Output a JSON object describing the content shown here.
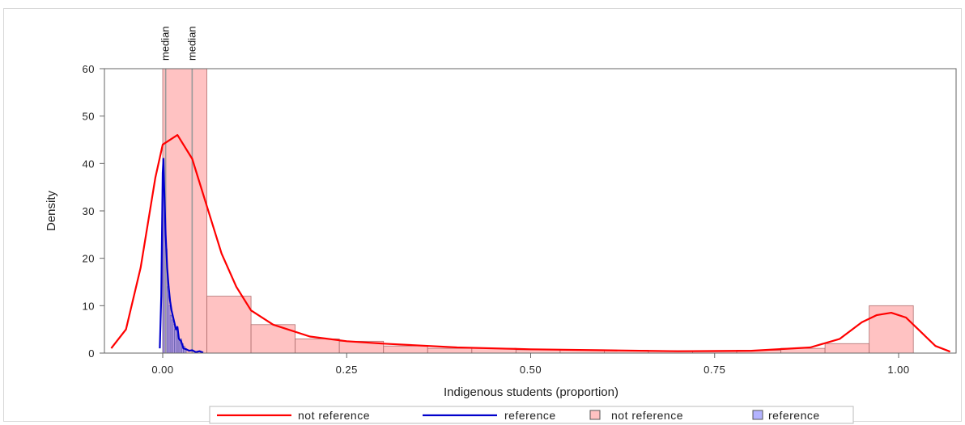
{
  "chart_data": {
    "type": "bar",
    "xlabel": "Indigenous students (proportion)",
    "ylabel": "Density",
    "xlim": [
      -0.08,
      1.07
    ],
    "ylim": [
      0,
      62
    ],
    "x_ticks": [
      0.0,
      0.25,
      0.5,
      0.75,
      1.0
    ],
    "x_tick_labels": [
      "0.00",
      "0.25",
      "0.50",
      "0.75",
      "1.00"
    ],
    "y_ticks": [
      0,
      10,
      20,
      30,
      40,
      50,
      60
    ],
    "y_tick_labels": [
      "0",
      "10",
      "20",
      "30",
      "40",
      "50",
      "60"
    ],
    "grid": false,
    "legend_position": "bottom",
    "medians": [
      {
        "label": "median",
        "x": 0.004
      },
      {
        "label": "median",
        "x": 0.04
      }
    ],
    "histograms": [
      {
        "name": "not reference",
        "color": "#ff9999",
        "bin_width": 0.06,
        "bin_starts": [
          0.0,
          0.06,
          0.12,
          0.18,
          0.24,
          0.3,
          0.36,
          0.42,
          0.48,
          0.54,
          0.6,
          0.66,
          0.72,
          0.78,
          0.84,
          0.9,
          0.96
        ],
        "values": [
          60,
          12,
          6,
          3,
          2.5,
          1.5,
          1,
          1,
          0.7,
          0.7,
          0.6,
          0.5,
          0.5,
          0.6,
          1,
          2,
          10
        ]
      },
      {
        "name": "reference",
        "color": "#8080ff",
        "bin_width": 0.002,
        "bin_starts": [
          0.0,
          0.002,
          0.004,
          0.006,
          0.008,
          0.01,
          0.012,
          0.014,
          0.016,
          0.018,
          0.02,
          0.022,
          0.024,
          0.026,
          0.028,
          0.03
        ],
        "values": [
          41,
          30,
          22,
          14,
          10,
          8,
          7,
          6,
          5,
          5,
          4,
          3,
          3,
          2,
          1.5,
          1
        ]
      }
    ],
    "density_curves": [
      {
        "name": "not reference",
        "color": "#ff0000",
        "x": [
          -0.07,
          -0.05,
          -0.03,
          -0.01,
          0.0,
          0.02,
          0.04,
          0.06,
          0.08,
          0.1,
          0.12,
          0.15,
          0.2,
          0.25,
          0.3,
          0.4,
          0.5,
          0.6,
          0.7,
          0.8,
          0.88,
          0.92,
          0.95,
          0.97,
          0.99,
          1.01,
          1.03,
          1.05,
          1.07
        ],
        "y": [
          1,
          5,
          18,
          37,
          44,
          46,
          41,
          31,
          21,
          14,
          9,
          6,
          3.5,
          2.5,
          2,
          1.2,
          0.8,
          0.6,
          0.4,
          0.5,
          1.2,
          3,
          6.5,
          8,
          8.5,
          7.5,
          4.5,
          1.5,
          0.3
        ]
      },
      {
        "name": "reference",
        "color": "#0000cc",
        "x": [
          -0.004,
          -0.002,
          0.0,
          0.001,
          0.002,
          0.004,
          0.006,
          0.008,
          0.01,
          0.012,
          0.015,
          0.018,
          0.02,
          0.022,
          0.025,
          0.028,
          0.032,
          0.036,
          0.04,
          0.045,
          0.05,
          0.055
        ],
        "y": [
          1,
          12,
          38,
          41,
          35,
          25,
          18,
          14,
          11,
          9,
          7,
          5,
          5.5,
          3,
          2.5,
          1,
          0.8,
          0.5,
          0.6,
          0.2,
          0.4,
          0.1
        ]
      }
    ],
    "legend": [
      {
        "label": "not reference",
        "kind": "line",
        "color": "#ff0000"
      },
      {
        "label": "reference",
        "kind": "line",
        "color": "#0000cc"
      },
      {
        "label": "not reference",
        "kind": "box",
        "color": "#ff9999"
      },
      {
        "label": "reference",
        "kind": "box",
        "color": "#8080ff"
      }
    ]
  }
}
